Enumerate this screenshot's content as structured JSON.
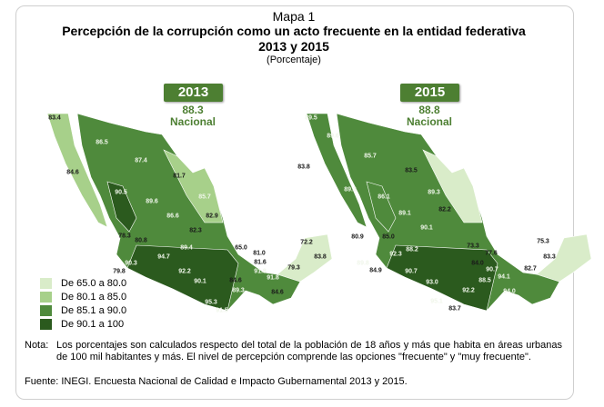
{
  "title": {
    "map_number": "Mapa 1",
    "line1": "Percepción de la corrupción como un acto frecuente en la entidad federativa",
    "line2": "2013 y 2015",
    "unit": "(Porcentaje)"
  },
  "colors": {
    "c1": "#d9ecc9",
    "c2": "#a7d08a",
    "c3": "#4f8a3c",
    "c4": "#2b5a1e"
  },
  "maps": [
    {
      "year": "2013",
      "national_value": "88.3",
      "national_label": "Nacional",
      "labels": [
        "83.4",
        "86.5",
        "87.4",
        "84.6",
        "81.7",
        "85.7",
        "90.5",
        "89.6",
        "86.6",
        "82.9",
        "82.3",
        "78.3",
        "80.8",
        "89.4",
        "65.0",
        "81.0",
        "94.7",
        "90.3",
        "81.6",
        "79.8",
        "92.2",
        "91.8",
        "84.6",
        "90.1",
        "89.3",
        "84.6",
        "95.3",
        "91.5",
        "72.2",
        "83.8",
        "79.3",
        "91.8"
      ]
    },
    {
      "year": "2015",
      "national_value": "88.8",
      "national_label": "Nacional",
      "labels": [
        "89.5",
        "89.6",
        "85.7",
        "83.8",
        "83.5",
        "89.3",
        "86.1",
        "89.3",
        "82.2",
        "89.1",
        "90.1",
        "80.9",
        "85.0",
        "73.3",
        "88.2",
        "92.3",
        "77.6",
        "89.8",
        "84.0",
        "84.9",
        "90.7",
        "90.7",
        "94.1",
        "88.5",
        "93.0",
        "92.2",
        "94.0",
        "95.1",
        "83.7",
        "75.3",
        "83.3",
        "82.7"
      ]
    }
  ],
  "legend": [
    {
      "label": "De 65.0 a 80.0",
      "color": "#d9ecc9"
    },
    {
      "label": "De 80.1 a 85.0",
      "color": "#a7d08a"
    },
    {
      "label": "De 85.1 a 90.0",
      "color": "#4f8a3c"
    },
    {
      "label": "De 90.1 a 100",
      "color": "#2b5a1e"
    }
  ],
  "note_label": "Nota:",
  "note": "Los porcentajes son calculados respecto del total de la población de 18 años y más que habita en áreas urbanas de 100 mil habitantes y más. El nivel de percepción comprende las opciones \"frecuente\" y \"muy frecuente\".",
  "source": "Fuente: INEGI. Encuesta Nacional de Calidad e Impacto Gubernamental 2013 y 2015."
}
